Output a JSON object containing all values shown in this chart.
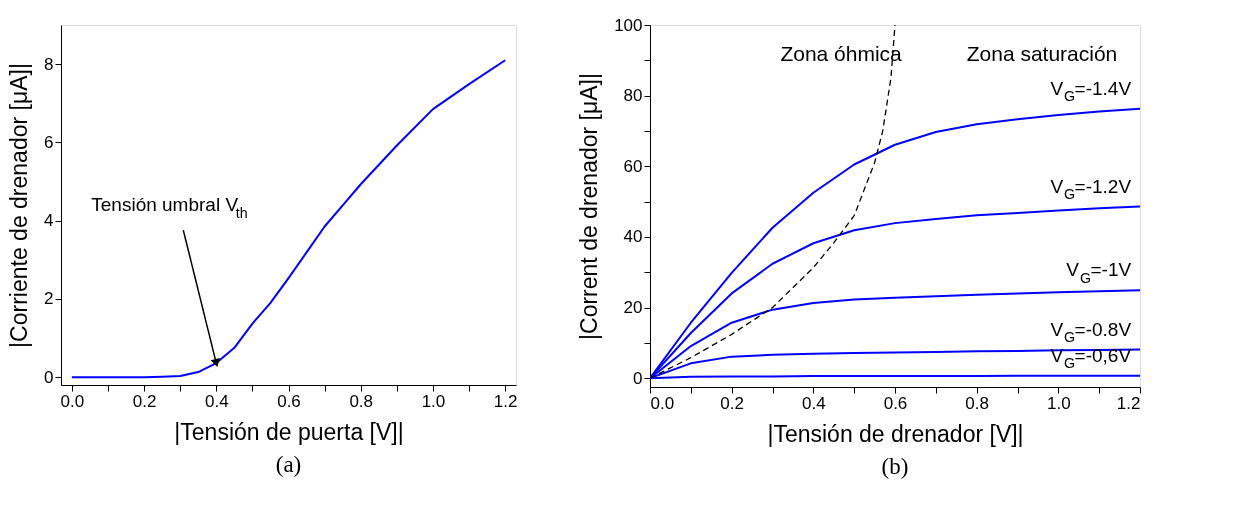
{
  "chart_data": [
    {
      "type": "line",
      "title": "(a)",
      "xlabel": "|Tensión de puerta [V]|",
      "ylabel": "|Corriente de drenador [μA]|",
      "xlim": [
        -0.03,
        1.23
      ],
      "xticks": [
        {
          "value": 0,
          "label": "0.0"
        },
        {
          "value": 0.1,
          "label": null
        },
        0.2,
        {
          "value": 0.3,
          "label": null
        },
        0.4,
        {
          "value": 0.5,
          "label": null
        },
        0.6,
        {
          "value": 0.7,
          "label": null
        },
        0.8,
        {
          "value": 0.9,
          "label": null
        },
        {
          "value": 1,
          "label": "1.0"
        },
        {
          "value": 1.1,
          "label": null
        },
        1.2
      ],
      "ylim": [
        -0.2,
        9
      ],
      "yticks": [
        0,
        2,
        4,
        6,
        8
      ],
      "grid": false,
      "legend": false,
      "marker": "none",
      "annotations": [
        {
          "text": "Tensión umbral V$_{th}$",
          "x": 0.4,
          "y": 0.36
        }
      ],
      "x": [
        0,
        0.2,
        0.25,
        0.3,
        0.35,
        0.4,
        0.45,
        0.5,
        0.55,
        0.6,
        0.65,
        0.7,
        0.75,
        0.8,
        0.9,
        1.0,
        1.1,
        1.2
      ],
      "series": [
        {
          "color": "#0000ff",
          "values": [
            0,
            0,
            0.01,
            0.03,
            0.13,
            0.36,
            0.75,
            1.37,
            1.9,
            2.53,
            3.19,
            3.85,
            4.39,
            4.93,
            5.92,
            6.85,
            7.49,
            8.1
          ]
        }
      ]
    },
    {
      "type": "line",
      "title": "(b)",
      "xlabel": "|Tensión de drenador [V]|",
      "ylabel": "|Corrent de drenador [μA]|",
      "xlim": [
        0,
        1.2
      ],
      "xticks": [
        {
          "value": 0,
          "label": "0.0"
        },
        {
          "value": 0.1,
          "label": null
        },
        0.2,
        {
          "value": 0.3,
          "label": null
        },
        0.4,
        {
          "value": 0.5,
          "label": null
        },
        0.6,
        {
          "value": 0.7,
          "label": null
        },
        0.8,
        {
          "value": 0.9,
          "label": null
        },
        {
          "value": 1,
          "label": "1.0"
        },
        {
          "value": 1.1,
          "label": null
        },
        1.2
      ],
      "ylim": [
        -2.5,
        100
      ],
      "yticks": [
        0,
        {
          "value": 10,
          "label": null
        },
        20,
        {
          "value": 30,
          "label": null
        },
        40,
        {
          "value": 50,
          "label": null
        },
        60,
        {
          "value": 70,
          "label": null
        },
        80,
        {
          "value": 90,
          "label": null
        },
        100
      ],
      "grid": false,
      "legend": false,
      "marker": "none",
      "annotations": [
        "Zona óhmica",
        "Zona saturación"
      ],
      "x": [
        0,
        0.1,
        0.2,
        0.3,
        0.4,
        0.5,
        0.6,
        0.7,
        0.8,
        0.9,
        1.0,
        1.1,
        1.2
      ],
      "series": [
        {
          "name": "V$_{G}$=-1.4V",
          "color": "#0000ff",
          "values": [
            0,
            15.7,
            29.8,
            42.6,
            52.5,
            60.5,
            66.1,
            69.7,
            71.9,
            73.3,
            74.5,
            75.5,
            76.3
          ]
        },
        {
          "name": "V$_{G}$=-1.2V",
          "color": "#0000ff",
          "values": [
            0,
            12.8,
            24,
            32.4,
            38.2,
            41.9,
            43.9,
            45.1,
            46.1,
            46.8,
            47.5,
            48.1,
            48.6
          ]
        },
        {
          "name": "V$_{G}$=-1V",
          "color": "#0000ff",
          "values": [
            0,
            9.1,
            15.7,
            19.4,
            21.3,
            22.3,
            22.8,
            23.2,
            23.6,
            24.0,
            24.3,
            24.6,
            24.9
          ]
        },
        {
          "name": "V$_{G}$=-0.8V",
          "color": "#0000ff",
          "values": [
            0,
            4.2,
            6.1,
            6.6,
            6.9,
            7.1,
            7.3,
            7.4,
            7.6,
            7.7,
            7.9,
            8.0,
            8.1
          ]
        },
        {
          "name": "V$_{G}$=-0,6V",
          "color": "#0000ff",
          "values": [
            0,
            0.4,
            0.5,
            0.5,
            0.6,
            0.6,
            0.6,
            0.6,
            0.6,
            0.7,
            0.7,
            0.7,
            0.7
          ]
        },
        {
          "color": "#000000",
          "line_style": "dashed",
          "x": [
            0,
            0.1,
            0.2,
            0.3,
            0.4,
            0.45,
            0.5,
            0.55,
            0.57,
            0.59,
            0.6
          ],
          "values": [
            0,
            5.8,
            12.4,
            20,
            31.3,
            38.3,
            46,
            61,
            70,
            85,
            100
          ]
        }
      ]
    }
  ]
}
